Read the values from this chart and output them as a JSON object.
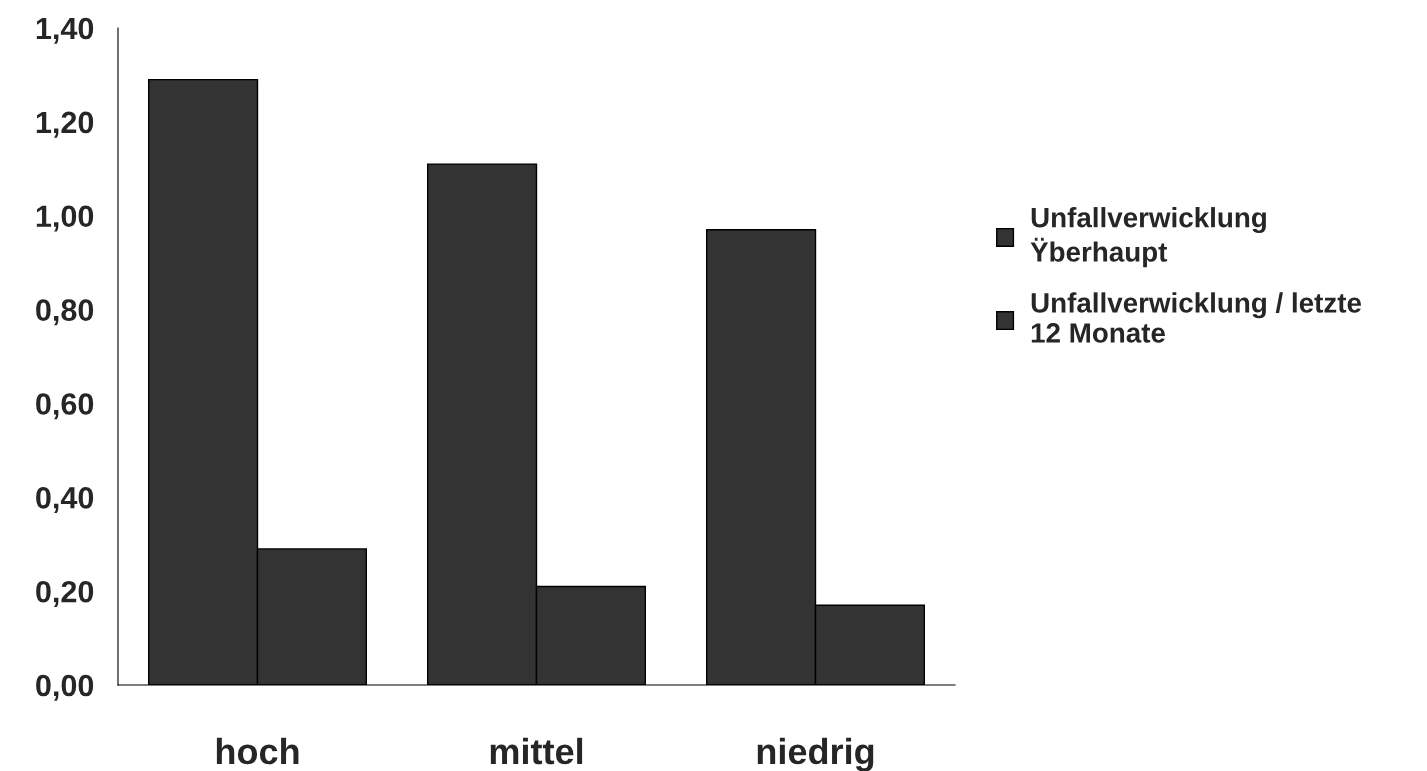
{
  "chart_data": {
    "type": "bar",
    "categories": [
      "hoch",
      "mittel",
      "niedrig"
    ],
    "series": [
      {
        "name": "Unfallverwicklung\nŸberhaupt",
        "color": "#333333",
        "values": [
          1.29,
          1.11,
          0.97
        ]
      },
      {
        "name": "Unfallverwicklung / letzte\n12 Monate",
        "color": "#333333",
        "values": [
          0.29,
          0.21,
          0.17
        ]
      }
    ],
    "ylim": [
      0,
      1.4
    ],
    "yticks": [
      {
        "value": 0,
        "label": "0,00"
      },
      {
        "value": 0.2,
        "label": "0,20"
      },
      {
        "value": 0.4,
        "label": "0,40"
      },
      {
        "value": 0.6,
        "label": "0,60"
      },
      {
        "value": 0.8,
        "label": "0,80"
      },
      {
        "value": 1.0,
        "label": "1,00"
      },
      {
        "value": 1.2,
        "label": "1,20"
      },
      {
        "value": 1.4,
        "label": "1,40"
      }
    ],
    "grid": false,
    "legend": "right"
  }
}
